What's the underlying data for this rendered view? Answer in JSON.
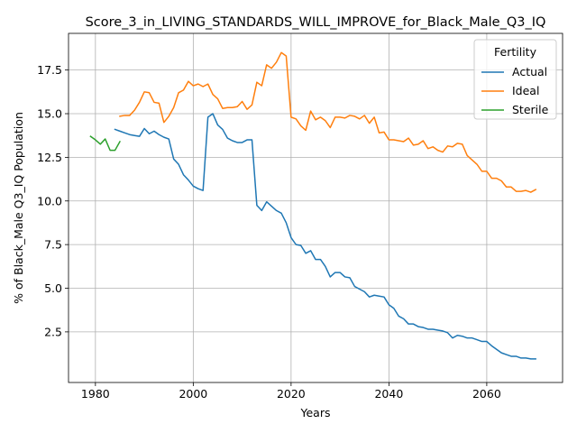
{
  "chart_data": {
    "type": "line",
    "title": "Score_3_in_LIVING_STANDARDS_WILL_IMPROVE_for_Black_Male_Q3_IQ",
    "xlabel": "Years",
    "ylabel": "% of Black_Male Q3_IQ Population",
    "xlim": [
      1974.5,
      2075.5
    ],
    "ylim": [
      -0.4,
      19.6
    ],
    "xticks": [
      1980,
      2000,
      2020,
      2040,
      2060
    ],
    "yticks": [
      2.5,
      5.0,
      7.5,
      10.0,
      12.5,
      15.0,
      17.5
    ],
    "ytick_labels": [
      "2.5",
      "5.0",
      "7.5",
      "10.0",
      "12.5",
      "15.0",
      "17.5"
    ],
    "grid": true,
    "legend": {
      "title": "Fertility",
      "placement": "top-right"
    },
    "series": [
      {
        "name": "Actual",
        "color": "#1f77b4",
        "x": [
          1984,
          1985,
          1986,
          1987,
          1988,
          1989,
          1990,
          1991,
          1992,
          1993,
          1994,
          1995,
          1996,
          1997,
          1998,
          1999,
          2000,
          2001,
          2002,
          2003,
          2004,
          2005,
          2006,
          2007,
          2008,
          2009,
          2010,
          2011,
          2012,
          2013,
          2014,
          2015,
          2016,
          2017,
          2018,
          2019,
          2020,
          2021,
          2022,
          2023,
          2024,
          2025,
          2026,
          2027,
          2028,
          2029,
          2030,
          2031,
          2032,
          2033,
          2034,
          2035,
          2036,
          2037,
          2038,
          2039,
          2040,
          2041,
          2042,
          2043,
          2044,
          2045,
          2046,
          2047,
          2048,
          2049,
          2050,
          2051,
          2052,
          2053,
          2054,
          2055,
          2056,
          2057,
          2058,
          2059,
          2060,
          2061,
          2062,
          2063,
          2064,
          2065,
          2066,
          2067,
          2068,
          2069,
          2070
        ],
        "values": [
          14.1,
          14.0,
          13.9,
          13.8,
          13.75,
          13.7,
          14.15,
          13.85,
          14.0,
          13.8,
          13.65,
          13.55,
          12.4,
          12.1,
          11.5,
          11.2,
          10.85,
          10.7,
          10.6,
          14.8,
          15.0,
          14.35,
          14.1,
          13.6,
          13.45,
          13.35,
          13.35,
          13.5,
          13.5,
          9.75,
          9.45,
          9.95,
          9.7,
          9.45,
          9.3,
          8.75,
          7.9,
          7.5,
          7.45,
          7.0,
          7.15,
          6.65,
          6.65,
          6.25,
          5.65,
          5.9,
          5.9,
          5.65,
          5.6,
          5.1,
          4.95,
          4.8,
          4.5,
          4.6,
          4.55,
          4.5,
          4.05,
          3.85,
          3.4,
          3.25,
          2.95,
          2.95,
          2.8,
          2.75,
          2.65,
          2.65,
          2.6,
          2.55,
          2.45,
          2.15,
          2.3,
          2.25,
          2.15,
          2.15,
          2.05,
          1.95,
          1.95,
          1.7,
          1.5,
          1.3,
          1.2,
          1.1,
          1.1,
          1.0,
          1.0,
          0.95,
          0.95
        ]
      },
      {
        "name": "Ideal",
        "color": "#ff7f0e",
        "x": [
          1985,
          1986,
          1987,
          1988,
          1989,
          1990,
          1991,
          1992,
          1993,
          1994,
          1995,
          1996,
          1997,
          1998,
          1999,
          2000,
          2001,
          2002,
          2003,
          2004,
          2005,
          2006,
          2007,
          2008,
          2009,
          2010,
          2011,
          2012,
          2013,
          2014,
          2015,
          2016,
          2017,
          2018,
          2019,
          2020,
          2021,
          2022,
          2023,
          2024,
          2025,
          2026,
          2027,
          2028,
          2029,
          2030,
          2031,
          2032,
          2033,
          2034,
          2035,
          2036,
          2037,
          2038,
          2039,
          2040,
          2041,
          2042,
          2043,
          2044,
          2045,
          2046,
          2047,
          2048,
          2049,
          2050,
          2051,
          2052,
          2053,
          2054,
          2055,
          2056,
          2057,
          2058,
          2059,
          2060,
          2061,
          2062,
          2063,
          2064,
          2065,
          2066,
          2067,
          2068,
          2069,
          2070
        ],
        "values": [
          14.85,
          14.9,
          14.9,
          15.2,
          15.65,
          16.25,
          16.2,
          15.65,
          15.6,
          14.5,
          14.85,
          15.35,
          16.2,
          16.35,
          16.85,
          16.6,
          16.7,
          16.55,
          16.7,
          16.1,
          15.85,
          15.3,
          15.35,
          15.35,
          15.4,
          15.7,
          15.25,
          15.5,
          16.8,
          16.6,
          17.8,
          17.6,
          17.95,
          18.5,
          18.3,
          14.8,
          14.7,
          14.3,
          14.05,
          15.15,
          14.65,
          14.8,
          14.6,
          14.2,
          14.8,
          14.8,
          14.75,
          14.9,
          14.85,
          14.7,
          14.9,
          14.45,
          14.8,
          13.9,
          13.95,
          13.5,
          13.5,
          13.45,
          13.4,
          13.6,
          13.2,
          13.25,
          13.45,
          13.0,
          13.1,
          12.9,
          12.8,
          13.15,
          13.1,
          13.3,
          13.25,
          12.6,
          12.35,
          12.1,
          11.7,
          11.7,
          11.3,
          11.3,
          11.15,
          10.8,
          10.8,
          10.55,
          10.55,
          10.6,
          10.5,
          10.65
        ]
      },
      {
        "name": "Sterile",
        "color": "#2ca02c",
        "x": [
          1979,
          1980,
          1981,
          1982,
          1983,
          1984,
          1985
        ],
        "values": [
          13.7,
          13.5,
          13.25,
          13.55,
          12.9,
          12.9,
          13.4
        ]
      }
    ]
  }
}
